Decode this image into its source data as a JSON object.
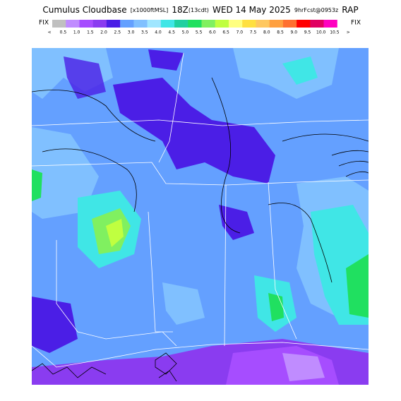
{
  "title_parts": [
    "Cumulus Cloudbase",
    "[x1000ftMSL]",
    "18Z",
    "(13cdt)",
    "WED 14 May 2025",
    "9hrFcst@0953z",
    "RAP"
  ],
  "fix_left": "FIX",
  "fix_right": "FIX",
  "colorbar": {
    "labels": [
      "<",
      "0.5",
      "1.0",
      "1.5",
      "2.0",
      "2.5",
      "3.0",
      "3.5",
      "4.0",
      "4.5",
      "5.0",
      "5.5",
      "6.0",
      "6.5",
      "7.0",
      "7.5",
      "8.0",
      "8.5",
      "9.0",
      "9.5",
      "10.0",
      "10.5",
      ">"
    ],
    "colors": [
      "#c0c0c0",
      "#c08cff",
      "#a64dff",
      "#8a3cf0",
      "#4b1ee6",
      "#64a0ff",
      "#80c0ff",
      "#a0e6ff",
      "#40e6e6",
      "#20d0a0",
      "#20e060",
      "#80f060",
      "#c0ff40",
      "#ffff80",
      "#ffe040",
      "#ffc860",
      "#ffa040",
      "#ff7030",
      "#ff0000",
      "#e00060",
      "#ff00c0",
      "#ffffff"
    ]
  }
}
